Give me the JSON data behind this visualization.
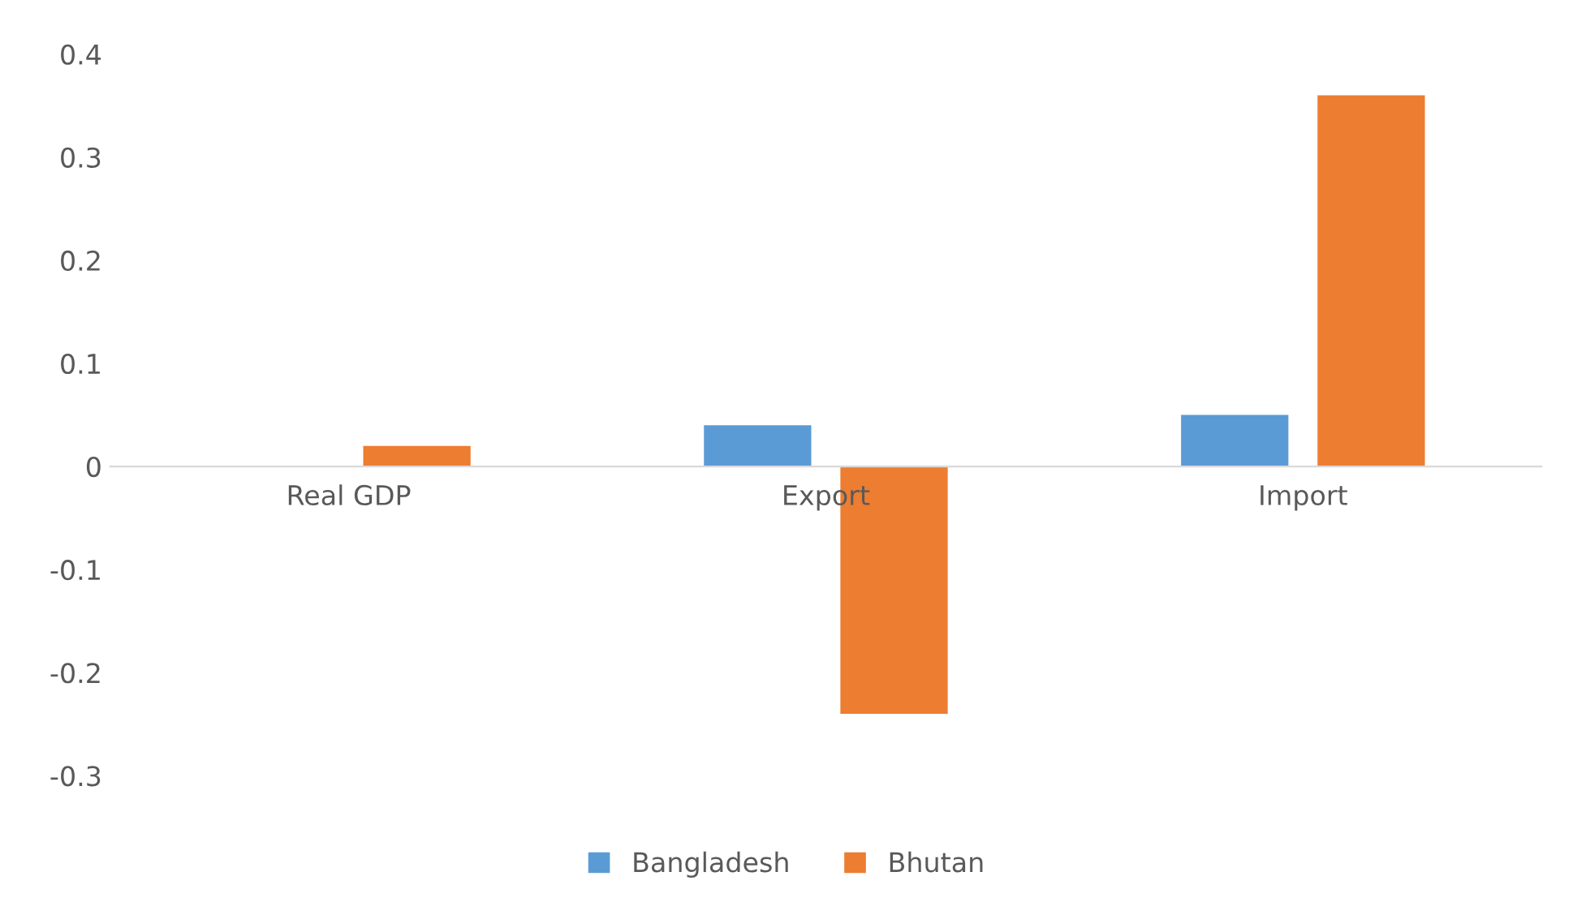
{
  "chart_data": {
    "type": "bar",
    "categories": [
      "Real GDP",
      "Export",
      "Import"
    ],
    "series": [
      {
        "name": "Bangladesh",
        "color": "#5b9bd5",
        "values": [
          0,
          0.04,
          0.05
        ]
      },
      {
        "name": "Bhutan",
        "color": "#ed7d31",
        "values": [
          0.02,
          -0.24,
          0.36
        ]
      }
    ],
    "ylim": [
      -0.3,
      0.4
    ],
    "yticks": [
      -0.3,
      -0.2,
      -0.1,
      0,
      0.1,
      0.2,
      0.3,
      0.4
    ],
    "grid": false,
    "legend": "bottom"
  }
}
